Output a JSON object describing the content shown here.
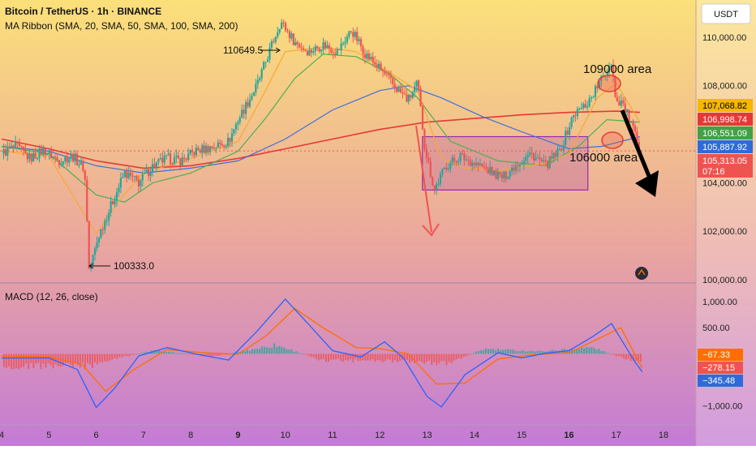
{
  "header": {
    "title": "Bitcoin / TetherUS · 1h · BINANCE",
    "indicator": "MA Ribbon (SMA, 20, SMA, 50, SMA, 100, SMA, 200)",
    "currency_button": "USDT"
  },
  "macd_panel": {
    "title": "MACD (12, 26, close)"
  },
  "annotations": {
    "high_label": "110649.5",
    "low_label": "100333.0",
    "upper_area": "109000 area",
    "lower_area": "106000 area"
  },
  "colors": {
    "bg_top": "#fbe07a",
    "bg_bottom": "#c37bd6",
    "up": "#26a69a",
    "down": "#ef5350",
    "sma20": "#f7a833",
    "sma50": "#4caf50",
    "sma100": "#3b6fe0",
    "sma200": "#e53935",
    "range_box": "#9c27b0",
    "macd_line": "#2962ff",
    "signal_line": "#ff6d00"
  },
  "price_badges": [
    {
      "label": "107,068.82",
      "bg": "#f5b700",
      "fg": "#000000"
    },
    {
      "label": "106,998.74",
      "bg": "#e53935",
      "fg": "#ffffff"
    },
    {
      "label": "106,551.09",
      "bg": "#43a047",
      "fg": "#ffffff"
    },
    {
      "label": "105,887.92",
      "bg": "#2f6bd8",
      "fg": "#ffffff"
    },
    {
      "label": "105,313.05",
      "bg": "#ef5350",
      "fg": "#ffffff"
    },
    {
      "label": "07:16",
      "bg": "#ef5350",
      "fg": "#ffffff"
    }
  ],
  "macd_badges": [
    {
      "label": "−67.33",
      "bg": "#ff6d00",
      "fg": "#ffffff"
    },
    {
      "label": "−278.15",
      "bg": "#ef5350",
      "fg": "#ffffff"
    },
    {
      "label": "−345.48",
      "bg": "#2f6bd8",
      "fg": "#ffffff"
    }
  ],
  "chart_data": [
    {
      "type": "candlestick",
      "ylim": [
        100000,
        111200
      ],
      "y_ticks": [
        "110,000.00",
        "108,000.00",
        "104,000.00",
        "102,000.00",
        "100,000.00"
      ],
      "y_tick_values": [
        110000,
        108000,
        104000,
        102000,
        100000
      ],
      "x_ticks": [
        "4",
        "5",
        "6",
        "7",
        "8",
        "9",
        "10",
        "11",
        "12",
        "13",
        "14",
        "15",
        "16",
        "17",
        "18"
      ],
      "x_bold": [
        "9",
        "16"
      ],
      "price_path": [
        [
          4.0,
          105200
        ],
        [
          4.3,
          105500
        ],
        [
          4.6,
          105000
        ],
        [
          4.9,
          105350
        ],
        [
          5.2,
          104900
        ],
        [
          5.5,
          105100
        ],
        [
          5.75,
          104600
        ],
        [
          5.8,
          102800
        ],
        [
          5.85,
          100333
        ],
        [
          6.05,
          101800
        ],
        [
          6.3,
          103000
        ],
        [
          6.6,
          104400
        ],
        [
          6.9,
          104000
        ],
        [
          7.2,
          104700
        ],
        [
          7.5,
          105000
        ],
        [
          7.8,
          104900
        ],
        [
          8.1,
          105300
        ],
        [
          8.5,
          105500
        ],
        [
          8.8,
          105700
        ],
        [
          9.0,
          106600
        ],
        [
          9.4,
          108000
        ],
        [
          9.7,
          109600
        ],
        [
          9.9,
          110649.5
        ],
        [
          10.2,
          109800
        ],
        [
          10.5,
          109400
        ],
        [
          10.8,
          109700
        ],
        [
          11.1,
          109400
        ],
        [
          11.4,
          110300
        ],
        [
          11.7,
          109300
        ],
        [
          12.0,
          108700
        ],
        [
          12.3,
          108000
        ],
        [
          12.6,
          107400
        ],
        [
          12.8,
          108100
        ],
        [
          12.95,
          105500
        ],
        [
          13.15,
          103700
        ],
        [
          13.4,
          104700
        ],
        [
          13.7,
          105100
        ],
        [
          14.0,
          104800
        ],
        [
          14.3,
          104500
        ],
        [
          14.6,
          104200
        ],
        [
          14.9,
          104800
        ],
        [
          15.2,
          105200
        ],
        [
          15.5,
          104700
        ],
        [
          15.8,
          105300
        ],
        [
          16.1,
          106800
        ],
        [
          16.4,
          107300
        ],
        [
          16.7,
          108300
        ],
        [
          16.9,
          109000
        ],
        [
          17.0,
          107300
        ],
        [
          17.1,
          107400
        ],
        [
          17.3,
          106500
        ],
        [
          17.5,
          105313
        ]
      ],
      "sma20": [
        [
          4.0,
          105300
        ],
        [
          5.0,
          105100
        ],
        [
          6.0,
          101900
        ],
        [
          6.5,
          103300
        ],
        [
          7.0,
          104400
        ],
        [
          8.0,
          105000
        ],
        [
          9.0,
          105700
        ],
        [
          9.5,
          107500
        ],
        [
          10.0,
          109400
        ],
        [
          10.8,
          109600
        ],
        [
          11.5,
          109400
        ],
        [
          12.0,
          108800
        ],
        [
          12.8,
          107800
        ],
        [
          13.3,
          105000
        ],
        [
          13.8,
          104600
        ],
        [
          14.5,
          104500
        ],
        [
          15.5,
          104800
        ],
        [
          16.0,
          105200
        ],
        [
          16.6,
          107500
        ],
        [
          17.0,
          108100
        ],
        [
          17.5,
          106500
        ]
      ],
      "sma50": [
        [
          4.0,
          105500
        ],
        [
          5.0,
          105200
        ],
        [
          6.0,
          103500
        ],
        [
          6.6,
          103200
        ],
        [
          7.2,
          104000
        ],
        [
          8.0,
          104400
        ],
        [
          9.0,
          105300
        ],
        [
          9.6,
          106700
        ],
        [
          10.2,
          108300
        ],
        [
          10.8,
          109300
        ],
        [
          11.5,
          109200
        ],
        [
          12.2,
          108500
        ],
        [
          12.8,
          107500
        ],
        [
          13.5,
          105700
        ],
        [
          14.5,
          104900
        ],
        [
          15.5,
          104700
        ],
        [
          16.2,
          105500
        ],
        [
          16.8,
          106600
        ],
        [
          17.5,
          106500
        ]
      ],
      "sma100": [
        [
          4.0,
          105500
        ],
        [
          5.0,
          105300
        ],
        [
          6.0,
          104700
        ],
        [
          7.0,
          104400
        ],
        [
          8.0,
          104600
        ],
        [
          9.0,
          104900
        ],
        [
          10.0,
          105800
        ],
        [
          11.0,
          107000
        ],
        [
          12.0,
          107800
        ],
        [
          12.6,
          108000
        ],
        [
          13.3,
          107500
        ],
        [
          14.2,
          106700
        ],
        [
          15.0,
          106100
        ],
        [
          16.0,
          105400
        ],
        [
          16.7,
          105500
        ],
        [
          17.5,
          105900
        ]
      ],
      "sma200": [
        [
          4.0,
          105800
        ],
        [
          5.0,
          105400
        ],
        [
          6.0,
          104900
        ],
        [
          7.0,
          104600
        ],
        [
          8.0,
          104700
        ],
        [
          9.0,
          105000
        ],
        [
          10.0,
          105400
        ],
        [
          11.0,
          105800
        ],
        [
          12.0,
          106200
        ],
        [
          13.0,
          106500
        ],
        [
          14.0,
          106650
        ],
        [
          15.0,
          106800
        ],
        [
          16.0,
          106900
        ],
        [
          17.0,
          106950
        ],
        [
          17.5,
          106900
        ]
      ],
      "range_box": {
        "x0": 12.9,
        "x1": 16.4,
        "y0": 103700,
        "y1": 105900
      },
      "high_point": {
        "x": 9.92,
        "y": 110649.5
      },
      "low_point": {
        "x": 5.85,
        "y": 100333.0
      }
    },
    {
      "type": "histogram_line",
      "ylim": [
        -1300,
        1250
      ],
      "y_ticks": [
        "1,000.00",
        "500.00",
        "−1,000.00"
      ],
      "y_tick_values": [
        1000,
        500,
        -1000
      ],
      "macd_line": [
        [
          4.0,
          -80
        ],
        [
          5.0,
          -80
        ],
        [
          5.6,
          -300
        ],
        [
          6.0,
          -1030
        ],
        [
          6.4,
          -650
        ],
        [
          6.9,
          -40
        ],
        [
          7.5,
          120
        ],
        [
          8.2,
          -20
        ],
        [
          8.8,
          -120
        ],
        [
          9.4,
          430
        ],
        [
          10.0,
          1050
        ],
        [
          10.5,
          560
        ],
        [
          11.0,
          60
        ],
        [
          11.6,
          -60
        ],
        [
          12.1,
          230
        ],
        [
          12.5,
          -80
        ],
        [
          13.0,
          -820
        ],
        [
          13.3,
          -1020
        ],
        [
          13.8,
          -400
        ],
        [
          14.5,
          20
        ],
        [
          15.0,
          -80
        ],
        [
          15.5,
          10
        ],
        [
          16.0,
          60
        ],
        [
          16.5,
          330
        ],
        [
          16.9,
          580
        ],
        [
          17.4,
          -160
        ],
        [
          17.55,
          -345
        ]
      ],
      "signal_line": [
        [
          4.0,
          -40
        ],
        [
          5.0,
          -60
        ],
        [
          5.7,
          -200
        ],
        [
          6.2,
          -720
        ],
        [
          6.8,
          -300
        ],
        [
          7.5,
          80
        ],
        [
          8.3,
          20
        ],
        [
          9.0,
          -10
        ],
        [
          9.6,
          350
        ],
        [
          10.2,
          870
        ],
        [
          10.8,
          500
        ],
        [
          11.5,
          120
        ],
        [
          12.0,
          100
        ],
        [
          12.6,
          0
        ],
        [
          13.2,
          -580
        ],
        [
          13.8,
          -560
        ],
        [
          14.5,
          -100
        ],
        [
          15.2,
          -20
        ],
        [
          16.0,
          20
        ],
        [
          16.6,
          280
        ],
        [
          17.1,
          500
        ],
        [
          17.55,
          -278
        ]
      ],
      "histogram": [
        [
          5.9,
          -300
        ],
        [
          6.2,
          -180
        ],
        [
          7.2,
          80
        ],
        [
          8.5,
          -60
        ],
        [
          9.8,
          220
        ],
        [
          10.8,
          -160
        ],
        [
          12.8,
          -200
        ],
        [
          13.4,
          -250
        ],
        [
          14.2,
          120
        ],
        [
          15.4,
          60
        ],
        [
          16.5,
          160
        ],
        [
          17.4,
          -220
        ]
      ]
    }
  ]
}
